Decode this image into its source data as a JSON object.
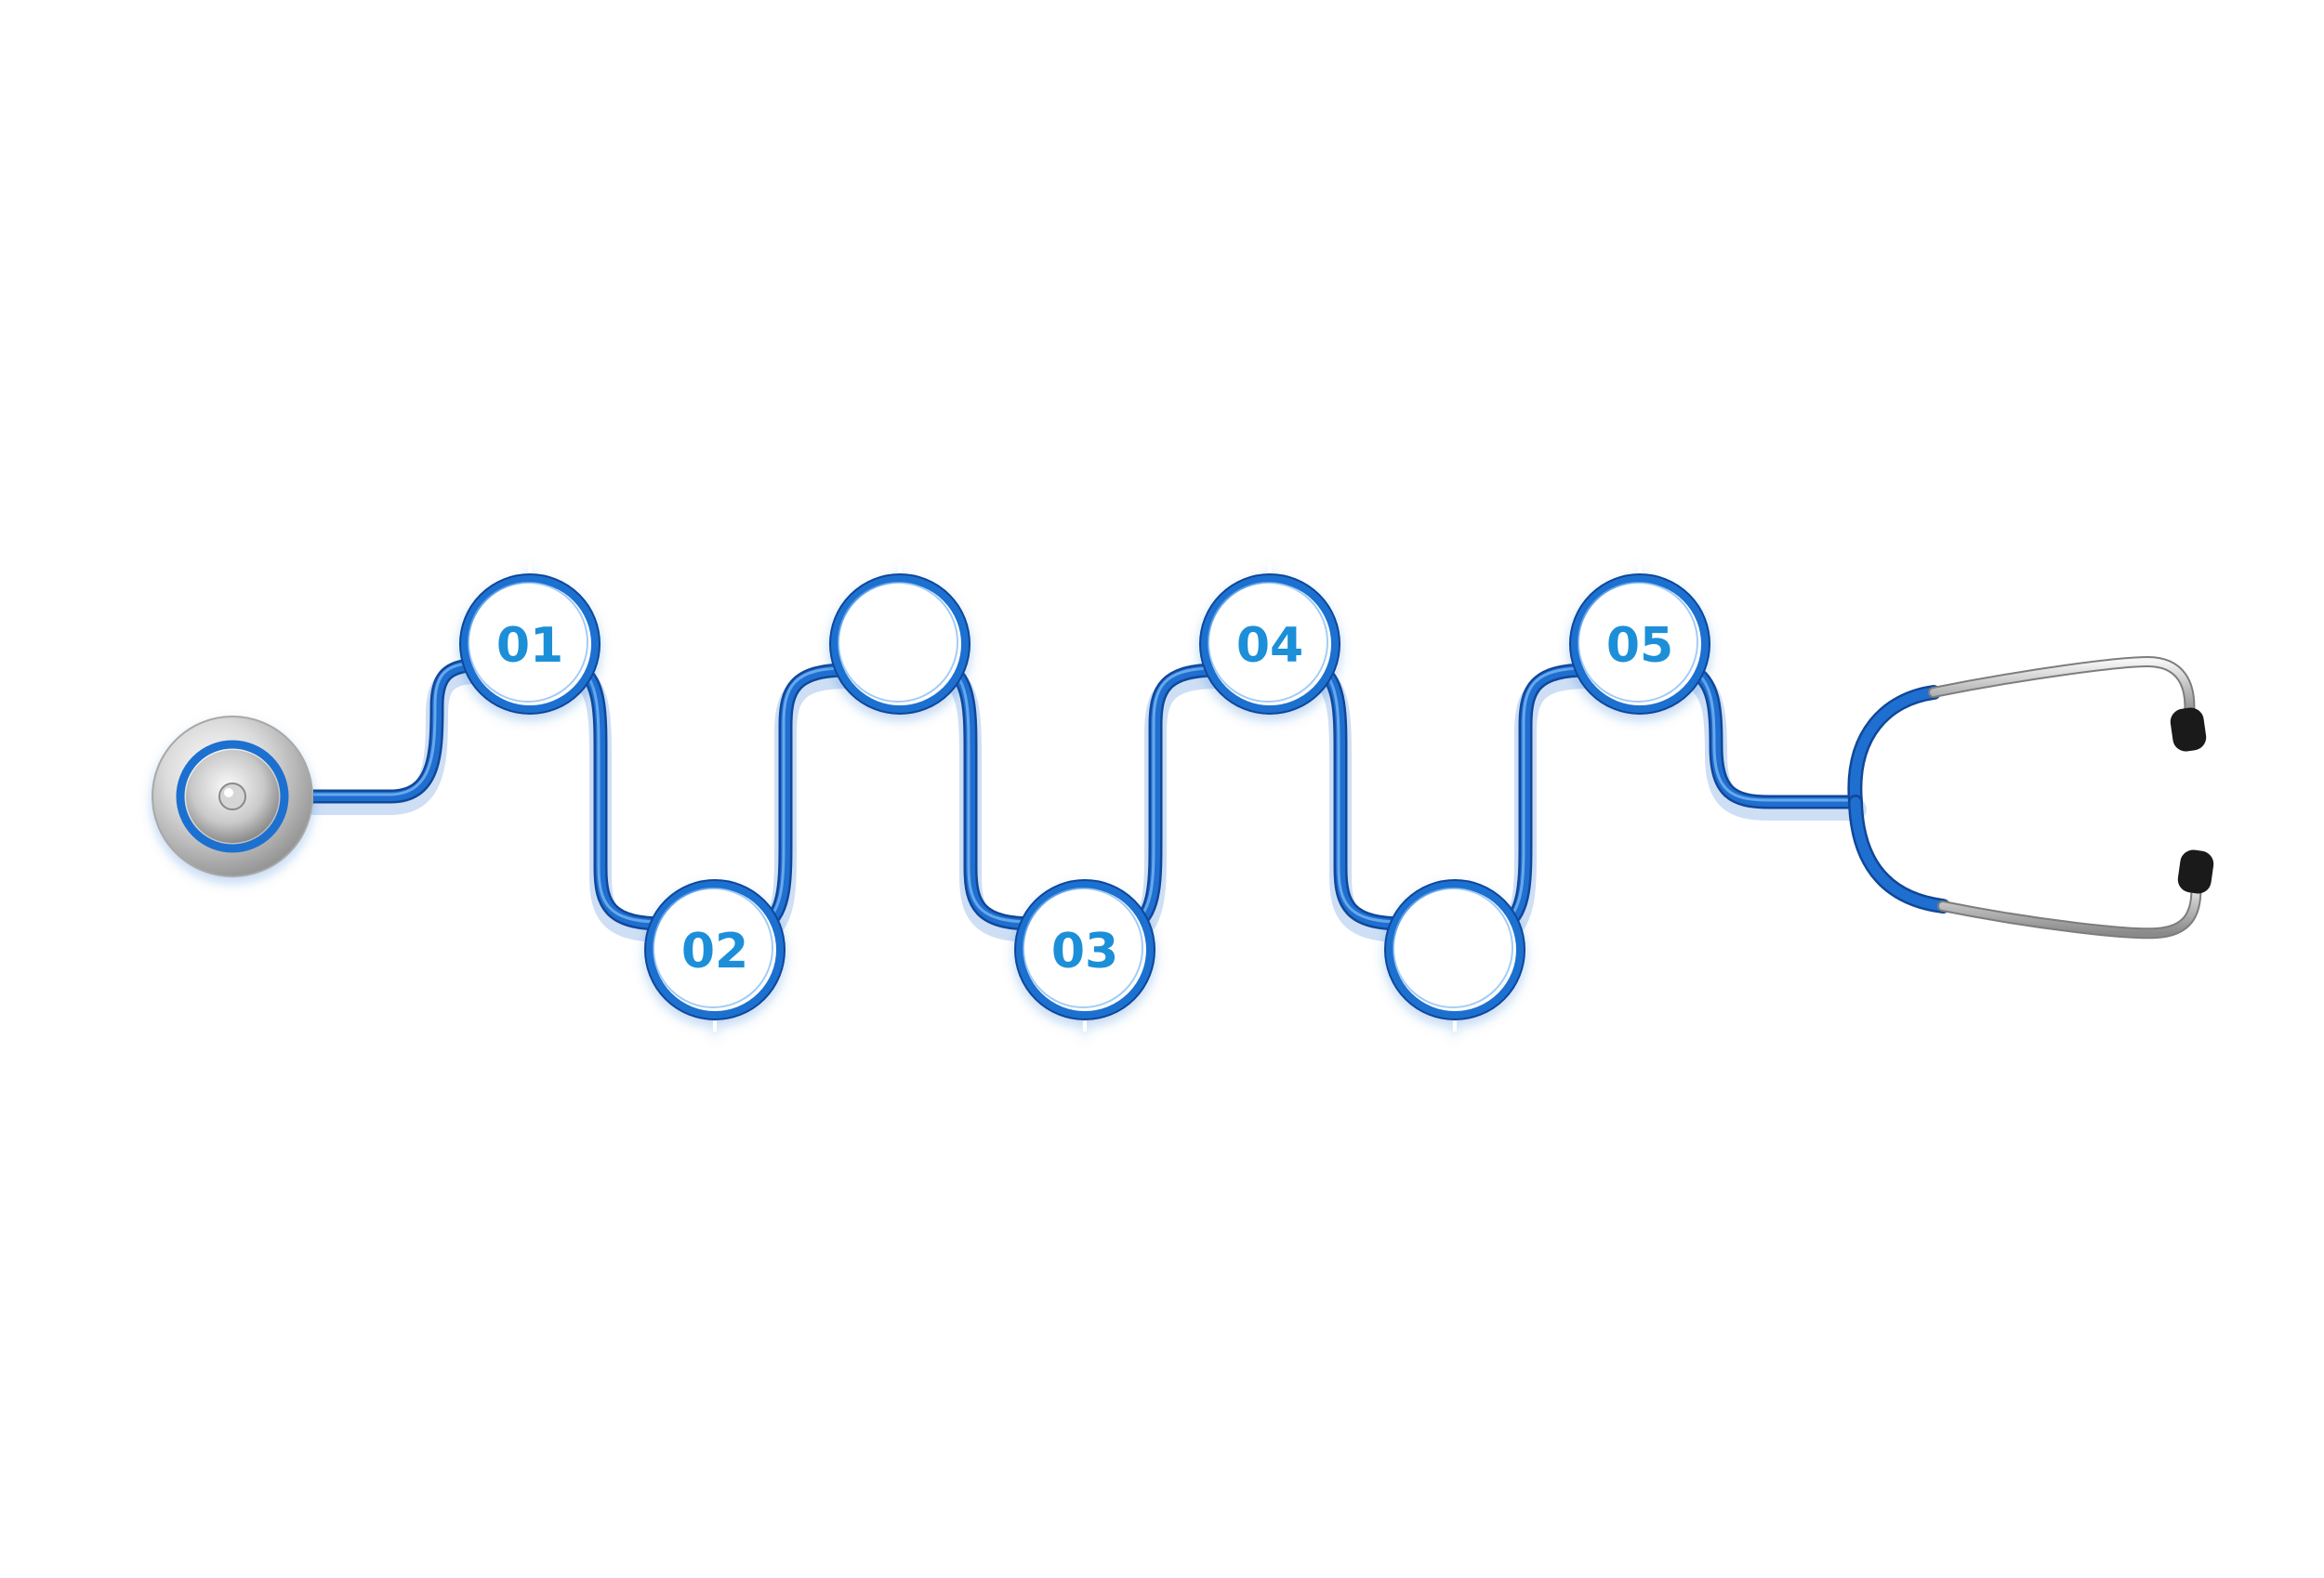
{
  "colors": {
    "tube": "#1f6fd0",
    "tube_dark": "#10479a",
    "tube_light": "#7ab6f2",
    "ring_fill": "#ffffff",
    "label": "#1a8fd8",
    "metal_light": "#f2f2f2",
    "metal_dark": "#9a9a9a",
    "eartip": "#1a1a1a"
  },
  "steps": [
    {
      "label": "01",
      "row": "top"
    },
    {
      "label": "02",
      "row": "bottom"
    },
    {
      "label": "",
      "row": "top"
    },
    {
      "label": "03",
      "row": "bottom"
    },
    {
      "label": "04",
      "row": "top"
    },
    {
      "label": "",
      "row": "bottom"
    },
    {
      "label": "05",
      "row": "top"
    }
  ],
  "icons": {
    "chestpiece": "stethoscope-chestpiece-icon",
    "headset": "stethoscope-headset-icon"
  }
}
